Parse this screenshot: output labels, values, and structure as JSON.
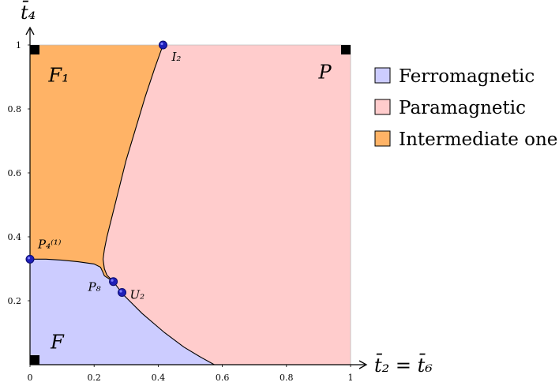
{
  "chart_data": {
    "type": "area",
    "xlabel": "t̄₂ = t̄₆",
    "ylabel": "t̄₄",
    "xlim": [
      0,
      1
    ],
    "ylim": [
      0,
      1
    ],
    "x_ticks": [
      "0",
      "0.2",
      "0.4",
      "0.6",
      "0.8",
      "1"
    ],
    "y_ticks": [
      "0.2",
      "0.4",
      "0.6",
      "0.8",
      "1"
    ],
    "grid": false,
    "legend_position": "right",
    "regions": [
      {
        "name": "Ferromagnetic",
        "color": "#ccccff"
      },
      {
        "name": "Paramagnetic",
        "color": "#ffcccc"
      },
      {
        "name": "Intermediate one",
        "color": "#ffb366"
      }
    ],
    "region_labels": [
      {
        "text": "F",
        "x": 0.085,
        "y": 0.07
      },
      {
        "text": "P",
        "x": 0.92,
        "y": 0.915
      },
      {
        "text": "F₁",
        "x": 0.09,
        "y": 0.905
      }
    ],
    "boundaries": {
      "ferro_intermediate": [
        [
          0,
          0.33
        ],
        [
          0.05,
          0.33
        ],
        [
          0.1,
          0.327
        ],
        [
          0.15,
          0.322
        ],
        [
          0.2,
          0.315
        ],
        [
          0.22,
          0.305
        ],
        [
          0.227,
          0.29
        ],
        [
          0.232,
          0.278
        ],
        [
          0.26,
          0.26
        ]
      ],
      "intermediate_para": [
        [
          0.26,
          0.26
        ],
        [
          0.24,
          0.28
        ],
        [
          0.232,
          0.3
        ],
        [
          0.228,
          0.33
        ],
        [
          0.232,
          0.36
        ],
        [
          0.24,
          0.4
        ],
        [
          0.27,
          0.52
        ],
        [
          0.3,
          0.64
        ],
        [
          0.33,
          0.74
        ],
        [
          0.36,
          0.84
        ],
        [
          0.39,
          0.93
        ],
        [
          0.415,
          1.0
        ]
      ],
      "ferro_para": [
        [
          0.26,
          0.26
        ],
        [
          0.29,
          0.22
        ],
        [
          0.35,
          0.16
        ],
        [
          0.42,
          0.1
        ],
        [
          0.48,
          0.055
        ],
        [
          0.53,
          0.025
        ],
        [
          0.575,
          0.0
        ]
      ]
    },
    "points": [
      {
        "label": "I₂",
        "x": 0.415,
        "y": 1.0
      },
      {
        "label": "P₄⁽¹⁾",
        "x": 0.0,
        "y": 0.33
      },
      {
        "label": "P₈",
        "x": 0.26,
        "y": 0.26
      },
      {
        "label": "U₂",
        "x": 0.287,
        "y": 0.226
      }
    ],
    "corner_markers": [
      {
        "x": 0.0,
        "y": 0.0
      },
      {
        "x": 0.0,
        "y": 1.0
      },
      {
        "x": 1.0,
        "y": 1.0
      }
    ]
  }
}
